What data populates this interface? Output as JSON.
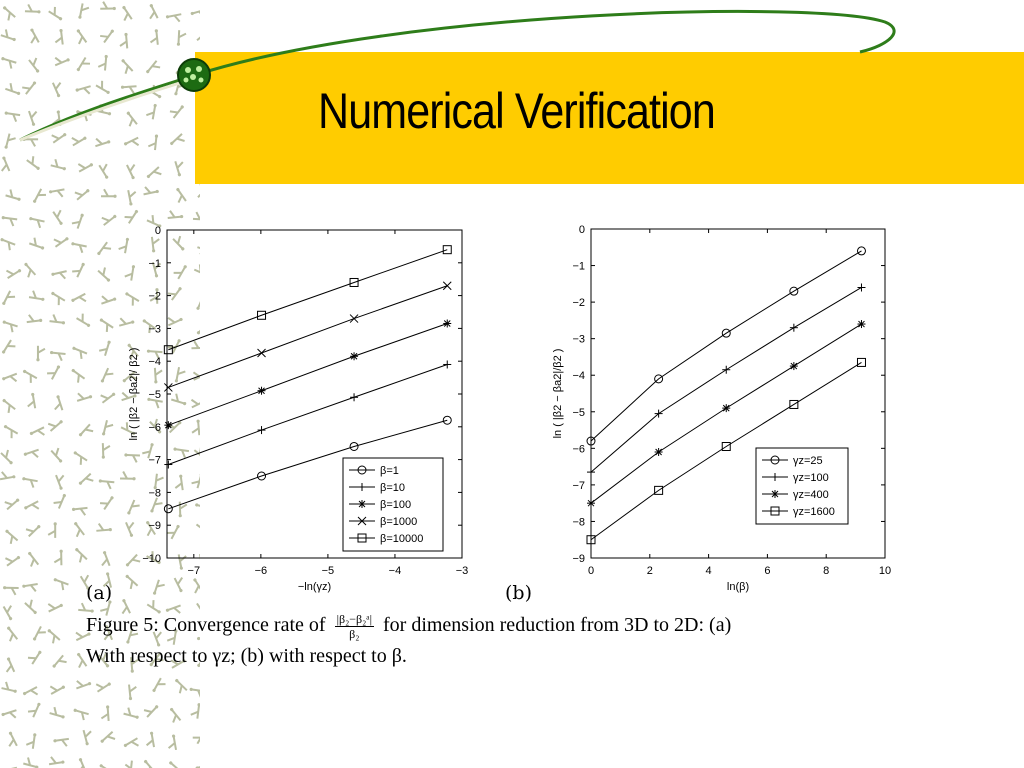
{
  "slide": {
    "title": "Numerical Verification",
    "colors": {
      "band": "#ffcc00",
      "swoosh": "#2e7d1a",
      "pattern": "#b8bda0"
    },
    "icons": [
      "molecule-pattern",
      "green-orb-icon"
    ]
  },
  "figure": {
    "label_a": "(a)",
    "label_b": "(b)",
    "caption_part1": "Figure 5:  Convergence rate of",
    "caption_frac_num": "|β₂−β₂ᵃ|",
    "caption_frac_den": "β₂",
    "caption_part2": "for dimension reduction from 3D to 2D: (a)",
    "caption_line2": "With respect to γz; (b) with respect to β."
  },
  "chart_data": [
    {
      "type": "line",
      "panel": "a",
      "xlabel": "−ln(γz)",
      "ylabel": "ln ( |β2 − βa2|/ β2 )",
      "xlim": [
        -7.4,
        -3
      ],
      "ylim": [
        -10,
        0
      ],
      "xticks": [
        -7,
        -6,
        -5,
        -4,
        -3
      ],
      "yticks": [
        0,
        -1,
        -2,
        -3,
        -4,
        -5,
        -6,
        -7,
        -8,
        -9,
        -10
      ],
      "grid": false,
      "legend_position": "bottom-right",
      "x": [
        -7.38,
        -5.99,
        -4.61,
        -3.22
      ],
      "series": [
        {
          "name": "β=1",
          "marker": "circle",
          "values": [
            -8.5,
            -7.5,
            -6.6,
            -5.8
          ]
        },
        {
          "name": "β=10",
          "marker": "plus",
          "values": [
            -7.15,
            -6.1,
            -5.1,
            -4.1
          ]
        },
        {
          "name": "β=100",
          "marker": "star",
          "values": [
            -5.95,
            -4.9,
            -3.85,
            -2.85
          ]
        },
        {
          "name": "β=1000",
          "marker": "x",
          "values": [
            -4.8,
            -3.75,
            -2.7,
            -1.7
          ]
        },
        {
          "name": "β=10000",
          "marker": "square",
          "values": [
            -3.65,
            -2.6,
            -1.6,
            -0.6
          ]
        }
      ]
    },
    {
      "type": "line",
      "panel": "b",
      "xlabel": "ln(β)",
      "ylabel": "ln ( |β2 − βa2|/β2 )",
      "xlim": [
        0,
        10
      ],
      "ylim": [
        -9,
        0
      ],
      "xticks": [
        0,
        2,
        4,
        6,
        8,
        10
      ],
      "yticks": [
        0,
        -1,
        -2,
        -3,
        -4,
        -5,
        -6,
        -7,
        -8,
        -9
      ],
      "grid": false,
      "legend_position": "bottom-right",
      "x": [
        0,
        2.3,
        4.6,
        6.9,
        9.2
      ],
      "series": [
        {
          "name": "γz=25",
          "marker": "circle",
          "values": [
            -5.8,
            -4.1,
            -2.85,
            -1.7,
            -0.6
          ]
        },
        {
          "name": "γz=100",
          "marker": "plus",
          "values": [
            -6.65,
            -5.05,
            -3.85,
            -2.7,
            -1.6
          ]
        },
        {
          "name": "γz=400",
          "marker": "star",
          "values": [
            -7.5,
            -6.1,
            -4.9,
            -3.75,
            -2.6
          ]
        },
        {
          "name": "γz=1600",
          "marker": "square",
          "values": [
            -8.5,
            -7.15,
            -5.95,
            -4.8,
            -3.65
          ]
        }
      ]
    }
  ]
}
